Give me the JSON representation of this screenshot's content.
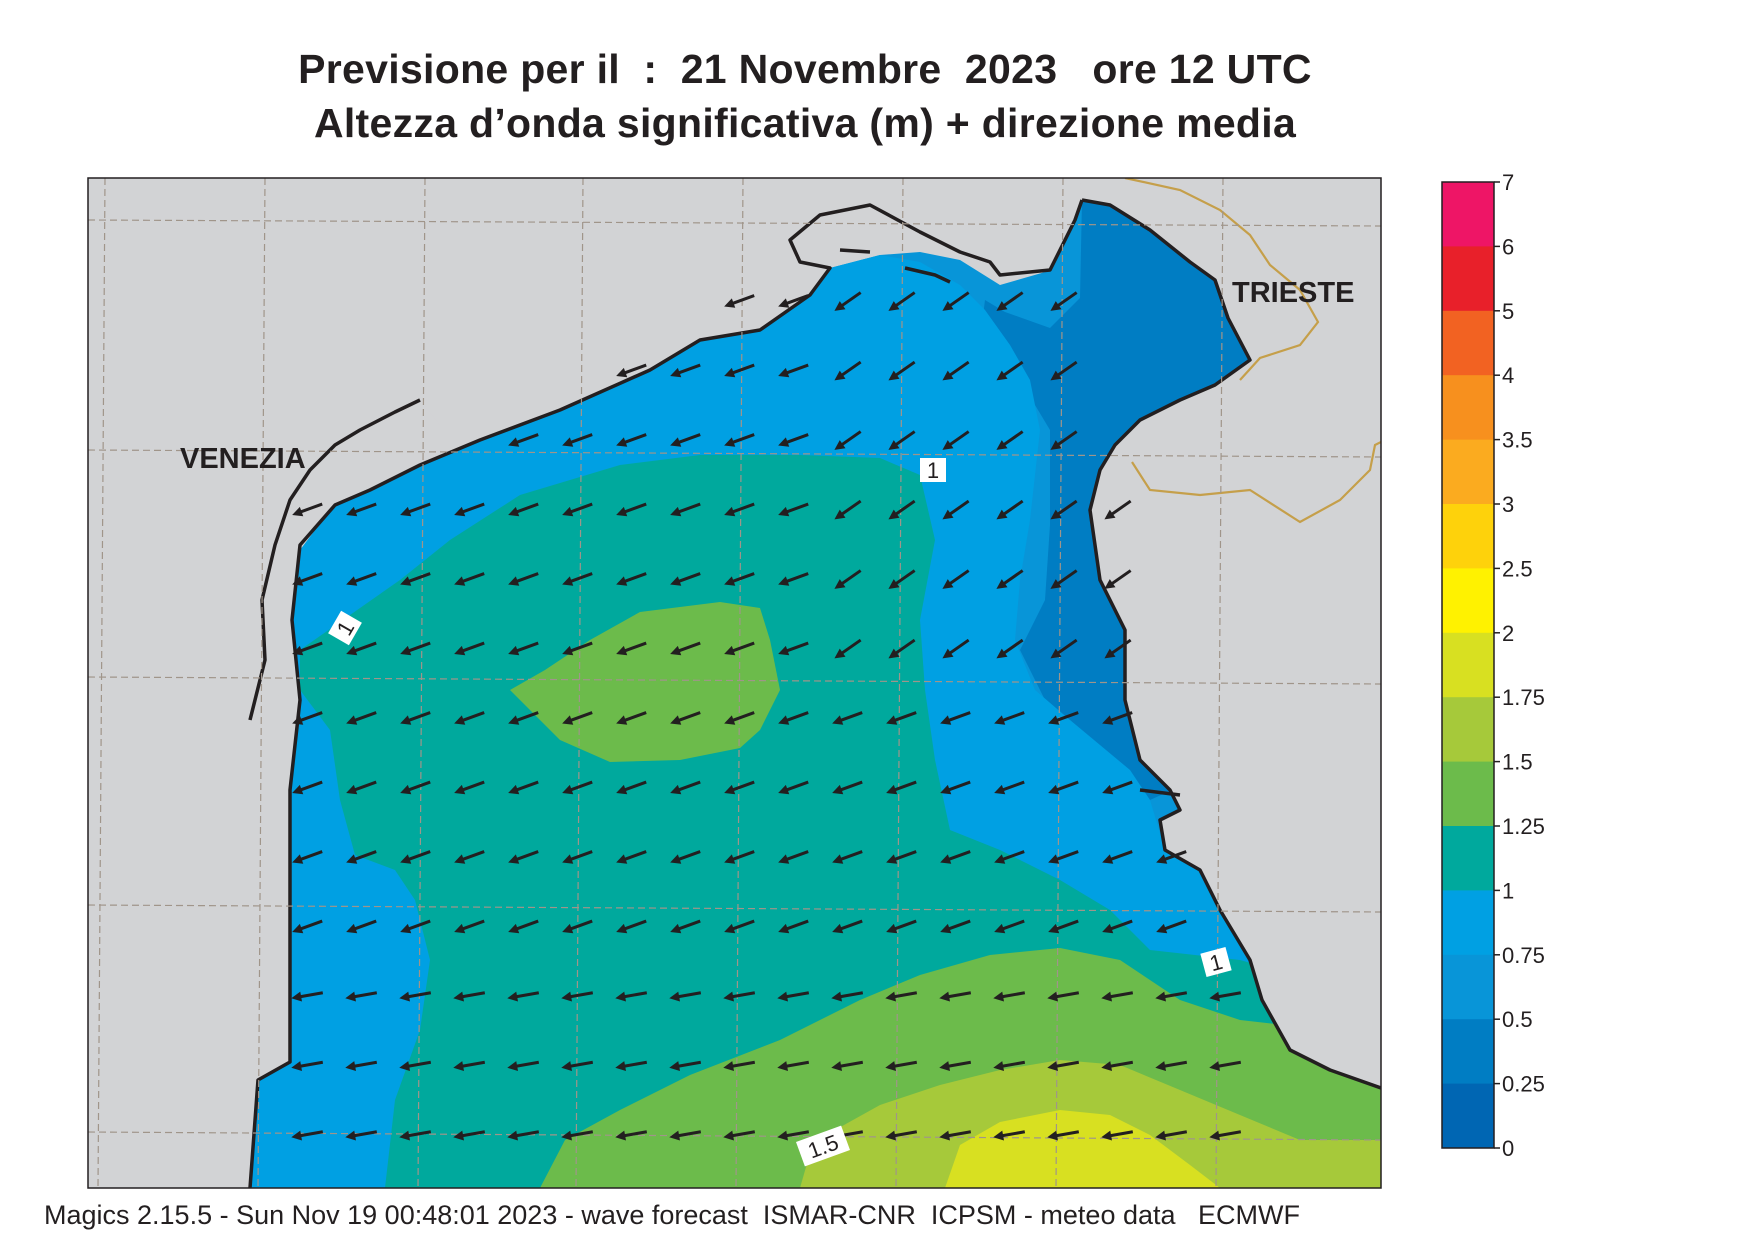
{
  "title_line1": "Previsione per il  :  21 Novembre  2023   ore 12 UTC",
  "title_line2": "Altezza d’onda significativa (m) + direzione media",
  "places": [
    "VENEZIA",
    "TRIESTE"
  ],
  "contour_labels": [
    "1",
    "1",
    "1",
    "1.5"
  ],
  "legend": {
    "ticks": [
      "7",
      "6",
      "5",
      "4",
      "3.5",
      "3",
      "2.5",
      "2",
      "1.75",
      "1.5",
      "1.25",
      "1",
      "0.75",
      "0.5",
      "0.25",
      "0"
    ],
    "colors": [
      "#ee1566",
      "#e8202a",
      "#f26222",
      "#f7901e",
      "#fbab1f",
      "#fed20b",
      "#fff200",
      "#d8e021",
      "#a6c93a",
      "#6cbb4b",
      "#00a99d",
      "#00a0e3",
      "#0895d8",
      "#007dc3",
      "#0066b3"
    ]
  },
  "colors": {
    "land": "#d2d3d5",
    "coast": "#231f20",
    "border": "#c59f4a",
    "grid": "#a0958a",
    "arrow": "#231f20"
  },
  "footer": "Magics 2.15.5 - Sun Nov 19 00:48:01 2023 - wave forecast  ISMAR-CNR  ICPSM - meteo data   ECMWF"
}
